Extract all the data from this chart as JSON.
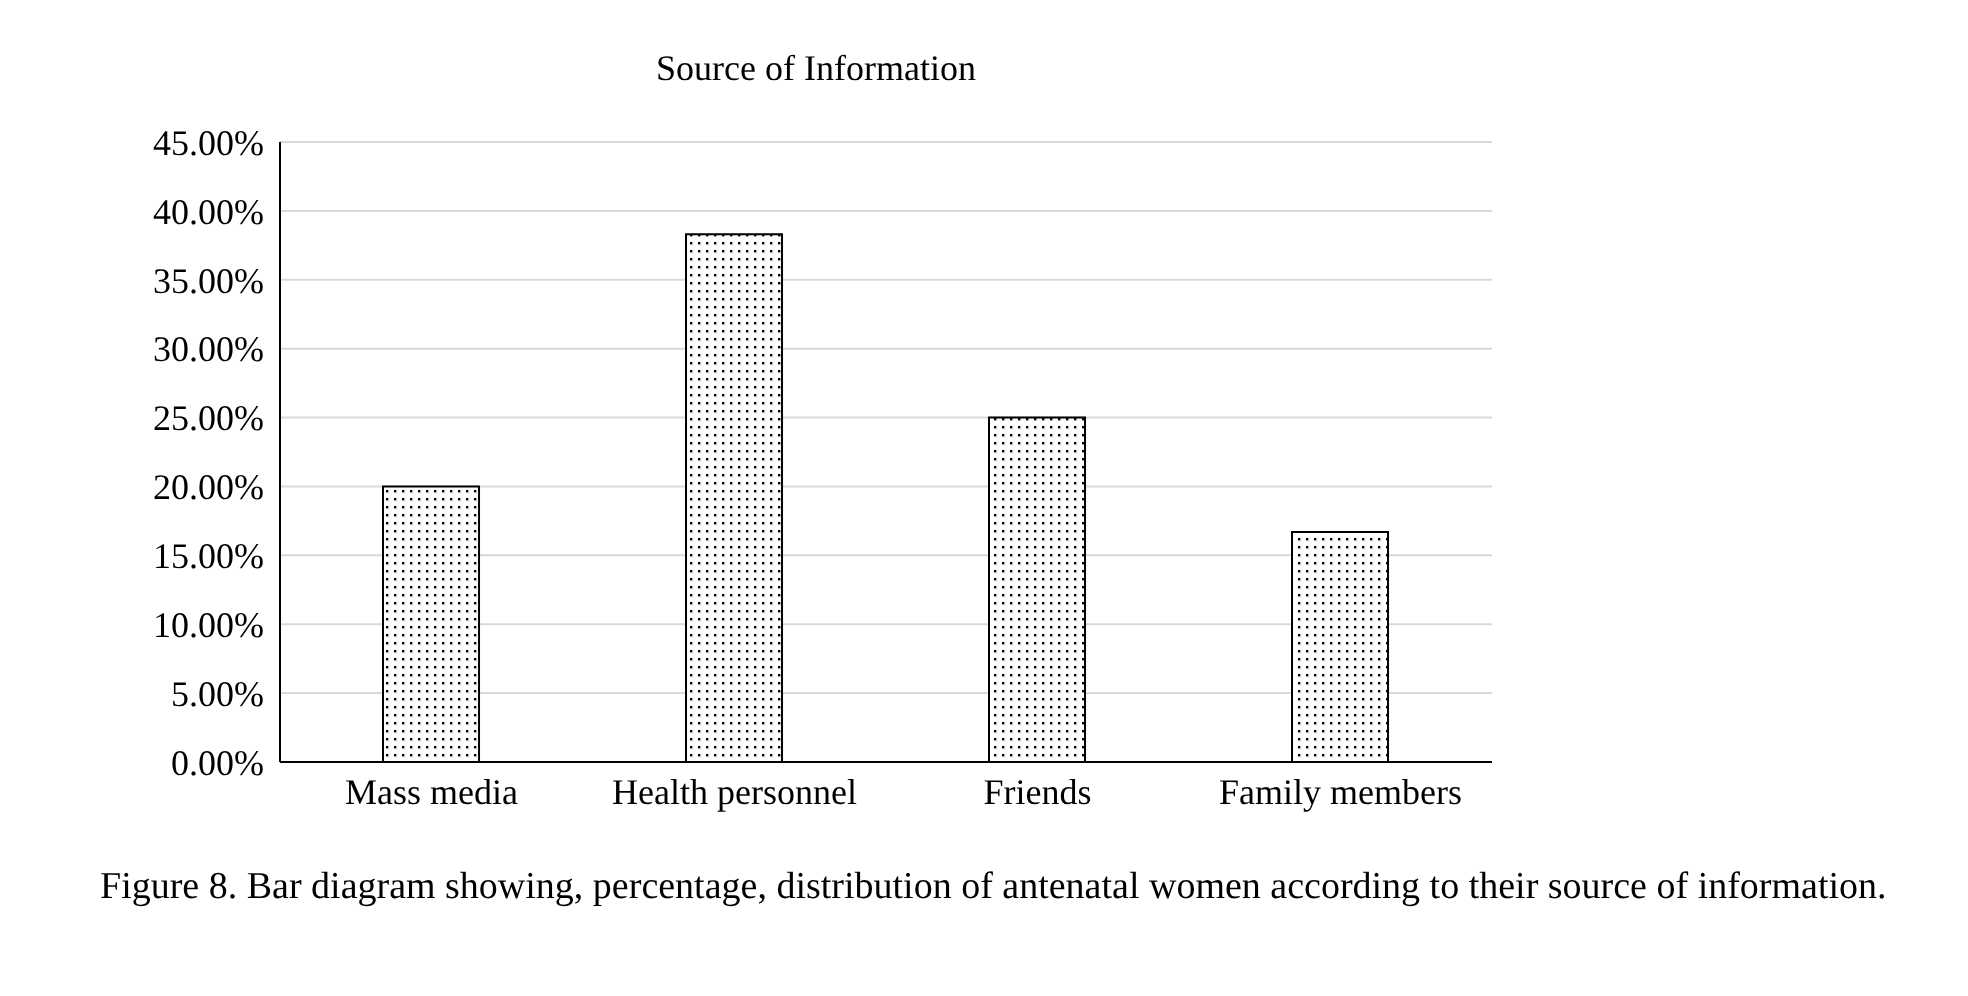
{
  "chart_data": {
    "type": "bar",
    "title": "Source of Information",
    "categories": [
      "Mass media",
      "Health personnel",
      "Friends",
      "Family members"
    ],
    "values": [
      20,
      38.3,
      25,
      16.7
    ],
    "color": "#000000",
    "ylim": [
      0,
      45
    ],
    "yticks": [
      {
        "value": 0,
        "label": "0.00%"
      },
      {
        "value": 5,
        "label": "5.00%"
      },
      {
        "value": 10,
        "label": "10.00%"
      },
      {
        "value": 15,
        "label": "15.00%"
      },
      {
        "value": 20,
        "label": "20.00%"
      },
      {
        "value": 25,
        "label": "25.00%"
      },
      {
        "value": 30,
        "label": "30.00%"
      },
      {
        "value": 35,
        "label": "35.00%"
      },
      {
        "value": 40,
        "label": "40.00%"
      },
      {
        "value": 45,
        "label": "45.00%"
      }
    ],
    "grid": "y",
    "annotations": [
      "Figure 8. Bar diagram showing, percentage, distribution of antenatal women according to their source of information."
    ]
  }
}
